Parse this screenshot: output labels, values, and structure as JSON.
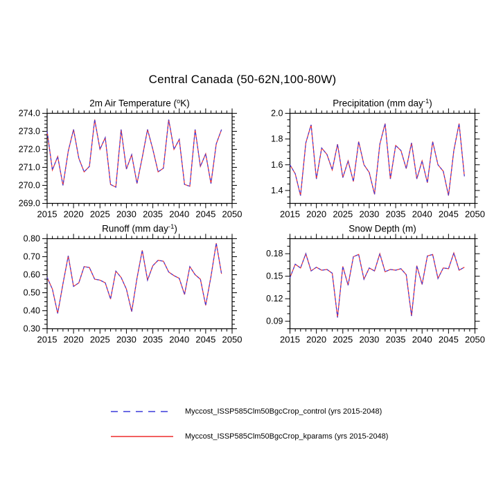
{
  "page_title": "Central Canada (50-62N,100-80W)",
  "colors": {
    "control": "#3c3cdc",
    "kparams": "#ee2c2c",
    "axis": "#000000",
    "text": "#000000",
    "background": "#ffffff"
  },
  "legend": {
    "position": "bottom",
    "items": [
      {
        "label": "Myccost_ISSP585Clm50BgcCrop_control (yrs 2015-2048)",
        "line": "dashed",
        "color_key": "control"
      },
      {
        "label": "Myccost_ISSP585Clm50BgcCrop_kparams (yrs 2015-2048)",
        "line": "solid",
        "color_key": "kparams"
      }
    ]
  },
  "chart_data": [
    {
      "id": "air-temperature",
      "type": "line",
      "title": "2m Air Temperature (°K)",
      "title_parts": [
        {
          "text": "2m Air Temperature ("
        },
        {
          "sup": "o"
        },
        {
          "text": "K)"
        }
      ],
      "xlabel": "",
      "ylabel": "",
      "grid": false,
      "xlim": [
        2015,
        2050
      ],
      "ylim": [
        269.0,
        274.0
      ],
      "xticks": [
        2015,
        2020,
        2025,
        2030,
        2035,
        2040,
        2045,
        2050
      ],
      "xtick_labels": [
        "2015",
        "2020",
        "2025",
        "2030",
        "2035",
        "2040",
        "2045",
        "2050"
      ],
      "x_minor_step": 1,
      "yticks": [
        269.0,
        270.0,
        271.0,
        272.0,
        273.0,
        274.0
      ],
      "ytick_labels": [
        "269.0",
        "270.0",
        "271.0",
        "272.0",
        "273.0",
        "274.0"
      ],
      "y_minor_step": 0.2,
      "x": [
        2015,
        2016,
        2017,
        2018,
        2019,
        2020,
        2021,
        2022,
        2023,
        2024,
        2025,
        2026,
        2027,
        2028,
        2029,
        2030,
        2031,
        2032,
        2033,
        2034,
        2035,
        2036,
        2037,
        2038,
        2039,
        2040,
        2041,
        2042,
        2043,
        2044,
        2045,
        2046,
        2047,
        2048
      ],
      "series": [
        {
          "name": "Myccost_ISSP585Clm50BgcCrop_control",
          "line": "dashed",
          "color_key": "control",
          "values": [
            273.0,
            270.85,
            271.6,
            270.0,
            271.9,
            273.1,
            271.5,
            270.75,
            271.05,
            273.65,
            272.0,
            272.65,
            270.05,
            269.9,
            273.1,
            270.9,
            271.7,
            270.1,
            271.55,
            273.1,
            272.0,
            270.75,
            270.95,
            273.65,
            272.0,
            272.55,
            270.05,
            269.95,
            273.1,
            271.05,
            271.75,
            270.1,
            272.3,
            273.1
          ]
        },
        {
          "name": "Myccost_ISSP585Clm50BgcCrop_kparams",
          "line": "solid",
          "color_key": "kparams",
          "values": [
            273.0,
            270.85,
            271.6,
            270.0,
            271.9,
            273.1,
            271.5,
            270.75,
            271.05,
            273.65,
            272.0,
            272.65,
            270.05,
            269.9,
            273.1,
            270.9,
            271.7,
            270.1,
            271.55,
            273.1,
            272.0,
            270.75,
            270.95,
            273.65,
            272.0,
            272.55,
            270.05,
            269.95,
            273.1,
            271.05,
            271.75,
            270.1,
            272.3,
            273.1
          ]
        }
      ]
    },
    {
      "id": "precipitation",
      "type": "line",
      "title": "Precipitation (mm day⁻¹)",
      "title_parts": [
        {
          "text": "Precipitation (mm day"
        },
        {
          "sup": "-1"
        },
        {
          "text": ")"
        }
      ],
      "xlabel": "",
      "ylabel": "",
      "grid": false,
      "xlim": [
        2015,
        2050
      ],
      "ylim": [
        1.3,
        2.0
      ],
      "xticks": [
        2015,
        2020,
        2025,
        2030,
        2035,
        2040,
        2045,
        2050
      ],
      "xtick_labels": [
        "2015",
        "2020",
        "2025",
        "2030",
        "2035",
        "2040",
        "2045",
        "2050"
      ],
      "x_minor_step": 1,
      "yticks": [
        1.4,
        1.6,
        1.8,
        2.0
      ],
      "ytick_labels": [
        "1.4",
        "1.6",
        "1.8",
        "2.0"
      ],
      "y_minor_step": 0.05,
      "x": [
        2015,
        2016,
        2017,
        2018,
        2019,
        2020,
        2021,
        2022,
        2023,
        2024,
        2025,
        2026,
        2027,
        2028,
        2029,
        2030,
        2031,
        2032,
        2033,
        2034,
        2035,
        2036,
        2037,
        2038,
        2039,
        2040,
        2041,
        2042,
        2043,
        2044,
        2045,
        2046,
        2047,
        2048
      ],
      "series": [
        {
          "name": "Myccost_ISSP585Clm50BgcCrop_control",
          "line": "dashed",
          "color_key": "control",
          "values": [
            1.6,
            1.53,
            1.36,
            1.77,
            1.91,
            1.49,
            1.73,
            1.68,
            1.56,
            1.76,
            1.5,
            1.63,
            1.47,
            1.78,
            1.6,
            1.54,
            1.37,
            1.76,
            1.92,
            1.49,
            1.75,
            1.71,
            1.57,
            1.77,
            1.49,
            1.63,
            1.46,
            1.78,
            1.6,
            1.55,
            1.36,
            1.71,
            1.92,
            1.51
          ]
        },
        {
          "name": "Myccost_ISSP585Clm50BgcCrop_kparams",
          "line": "solid",
          "color_key": "kparams",
          "values": [
            1.6,
            1.53,
            1.36,
            1.77,
            1.91,
            1.49,
            1.73,
            1.68,
            1.56,
            1.76,
            1.5,
            1.63,
            1.47,
            1.78,
            1.6,
            1.54,
            1.37,
            1.76,
            1.92,
            1.49,
            1.75,
            1.71,
            1.57,
            1.77,
            1.49,
            1.63,
            1.46,
            1.78,
            1.6,
            1.55,
            1.36,
            1.71,
            1.92,
            1.51
          ]
        }
      ]
    },
    {
      "id": "runoff",
      "type": "line",
      "title": "Runoff (mm day⁻¹)",
      "title_parts": [
        {
          "text": "Runoff (mm day"
        },
        {
          "sup": "-1"
        },
        {
          "text": ")"
        }
      ],
      "xlabel": "",
      "ylabel": "",
      "grid": false,
      "xlim": [
        2015,
        2050
      ],
      "ylim": [
        0.3,
        0.8
      ],
      "xticks": [
        2015,
        2020,
        2025,
        2030,
        2035,
        2040,
        2045,
        2050
      ],
      "xtick_labels": [
        "2015",
        "2020",
        "2025",
        "2030",
        "2035",
        "2040",
        "2045",
        "2050"
      ],
      "x_minor_step": 1,
      "yticks": [
        0.3,
        0.4,
        0.5,
        0.6,
        0.7,
        0.8
      ],
      "ytick_labels": [
        "0.30",
        "0.40",
        "0.50",
        "0.60",
        "0.70",
        "0.80"
      ],
      "y_minor_step": 0.025,
      "x": [
        2015,
        2016,
        2017,
        2018,
        2019,
        2020,
        2021,
        2022,
        2023,
        2024,
        2025,
        2026,
        2027,
        2028,
        2029,
        2030,
        2031,
        2032,
        2033,
        2034,
        2035,
        2036,
        2037,
        2038,
        2039,
        2040,
        2041,
        2042,
        2043,
        2044,
        2045,
        2046,
        2047,
        2048
      ],
      "series": [
        {
          "name": "Myccost_ISSP585Clm50BgcCrop_control",
          "line": "dashed",
          "color_key": "control",
          "values": [
            0.585,
            0.52,
            0.385,
            0.55,
            0.705,
            0.535,
            0.555,
            0.645,
            0.64,
            0.575,
            0.57,
            0.555,
            0.465,
            0.62,
            0.585,
            0.52,
            0.395,
            0.58,
            0.735,
            0.57,
            0.65,
            0.68,
            0.675,
            0.615,
            0.595,
            0.58,
            0.49,
            0.645,
            0.6,
            0.575,
            0.43,
            0.59,
            0.775,
            0.605
          ]
        },
        {
          "name": "Myccost_ISSP585Clm50BgcCrop_kparams",
          "line": "solid",
          "color_key": "kparams",
          "values": [
            0.585,
            0.52,
            0.385,
            0.55,
            0.705,
            0.535,
            0.555,
            0.645,
            0.64,
            0.575,
            0.57,
            0.555,
            0.465,
            0.62,
            0.585,
            0.52,
            0.395,
            0.58,
            0.735,
            0.57,
            0.65,
            0.68,
            0.675,
            0.615,
            0.595,
            0.58,
            0.49,
            0.645,
            0.6,
            0.575,
            0.43,
            0.59,
            0.775,
            0.605
          ]
        }
      ]
    },
    {
      "id": "snow-depth",
      "type": "line",
      "title": "Snow Depth (m)",
      "title_parts": [
        {
          "text": "Snow Depth (m)"
        }
      ],
      "xlabel": "",
      "ylabel": "",
      "grid": false,
      "xlim": [
        2015,
        2050
      ],
      "ylim": [
        0.08,
        0.2
      ],
      "xticks": [
        2015,
        2020,
        2025,
        2030,
        2035,
        2040,
        2045,
        2050
      ],
      "xtick_labels": [
        "2015",
        "2020",
        "2025",
        "2030",
        "2035",
        "2040",
        "2045",
        "2050"
      ],
      "x_minor_step": 1,
      "yticks": [
        0.09,
        0.12,
        0.15,
        0.18
      ],
      "ytick_labels": [
        "0.09",
        "0.12",
        "0.15",
        "0.18"
      ],
      "y_minor_step": 0.01,
      "x": [
        2015,
        2016,
        2017,
        2018,
        2019,
        2020,
        2021,
        2022,
        2023,
        2024,
        2025,
        2026,
        2027,
        2028,
        2029,
        2030,
        2031,
        2032,
        2033,
        2034,
        2035,
        2036,
        2037,
        2038,
        2039,
        2040,
        2041,
        2042,
        2043,
        2044,
        2045,
        2046,
        2047,
        2048
      ],
      "series": [
        {
          "name": "Myccost_ISSP585Clm50BgcCrop_control",
          "line": "dashed",
          "color_key": "control",
          "values": [
            0.148,
            0.166,
            0.161,
            0.18,
            0.157,
            0.162,
            0.158,
            0.159,
            0.154,
            0.095,
            0.163,
            0.138,
            0.176,
            0.179,
            0.146,
            0.161,
            0.157,
            0.18,
            0.156,
            0.159,
            0.158,
            0.16,
            0.152,
            0.097,
            0.164,
            0.139,
            0.177,
            0.179,
            0.147,
            0.161,
            0.16,
            0.181,
            0.158,
            0.162
          ]
        },
        {
          "name": "Myccost_ISSP585Clm50BgcCrop_kparams",
          "line": "solid",
          "color_key": "kparams",
          "values": [
            0.148,
            0.166,
            0.161,
            0.18,
            0.157,
            0.162,
            0.158,
            0.159,
            0.154,
            0.095,
            0.163,
            0.138,
            0.176,
            0.179,
            0.146,
            0.161,
            0.157,
            0.18,
            0.156,
            0.159,
            0.158,
            0.16,
            0.152,
            0.097,
            0.164,
            0.139,
            0.177,
            0.179,
            0.147,
            0.161,
            0.16,
            0.181,
            0.158,
            0.162
          ]
        }
      ]
    }
  ]
}
